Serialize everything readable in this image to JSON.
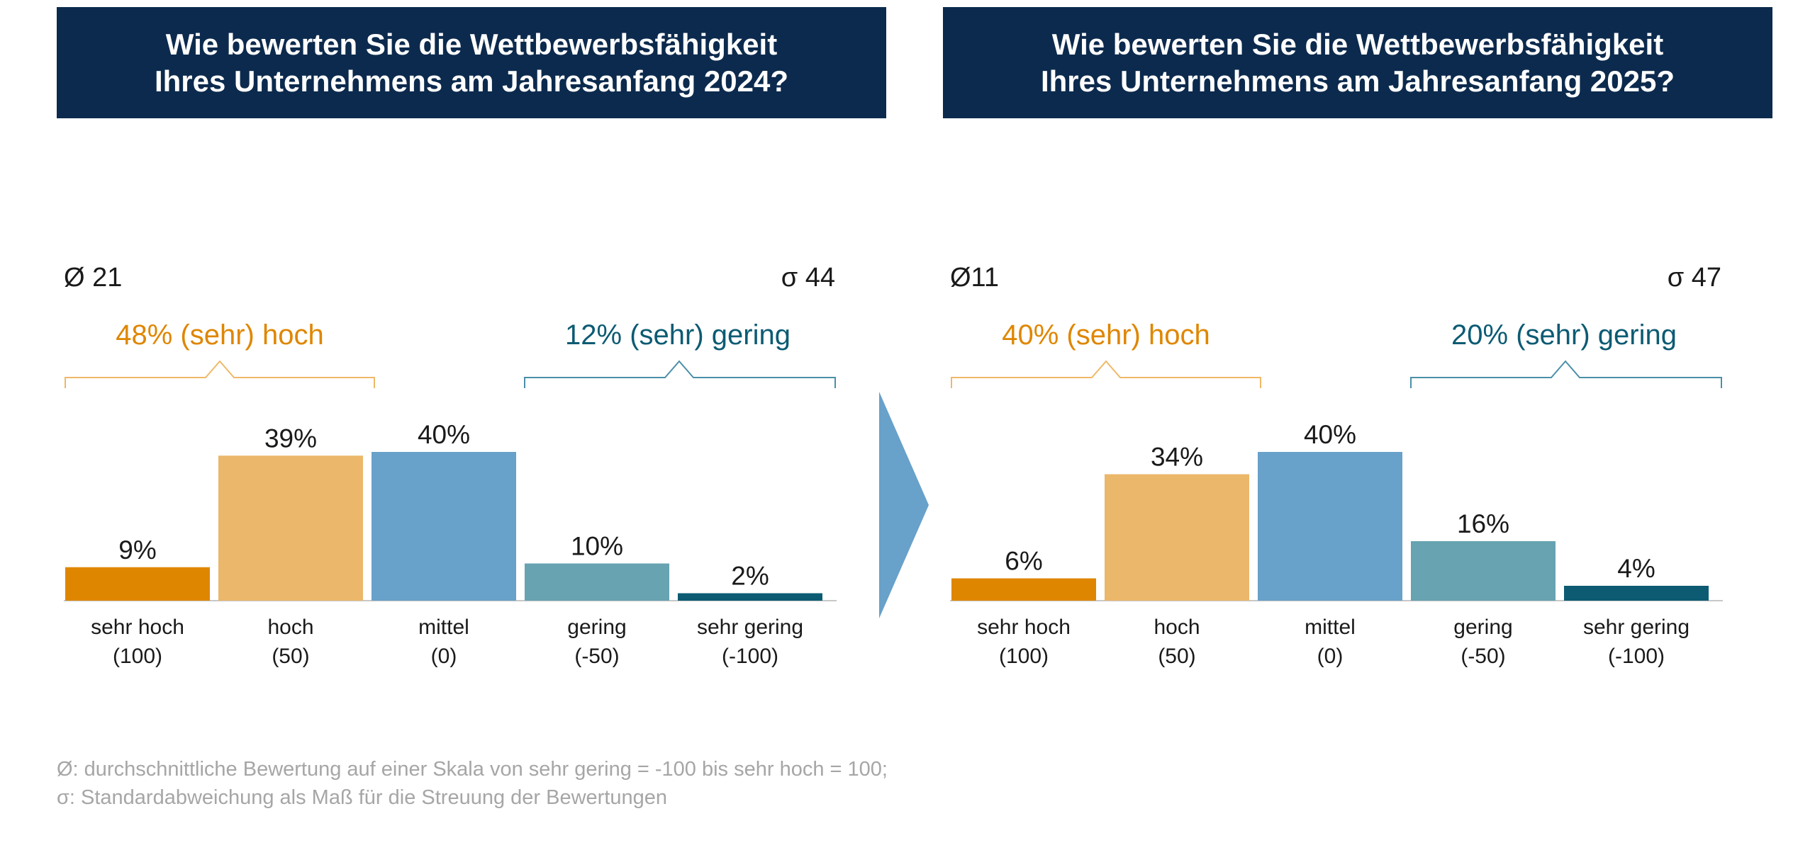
{
  "colors": {
    "header_bg": "#0c2a4d",
    "header_text": "#ffffff",
    "sehr_hoch": "#df8600",
    "hoch": "#ebb76a",
    "mittel": "#68a1c9",
    "gering": "#67a3b1",
    "sehr_gering": "#0c5b73",
    "bracket_hoch": "#f0b868",
    "bracket_gering": "#4b8fa8",
    "arrow": "#68a1c9",
    "footnote": "#a6a6a6"
  },
  "footnote": {
    "line1": "Ø: durchschnittliche Bewertung auf einer Skala von sehr gering = -100 bis sehr hoch = 100;",
    "line2": "σ: Standardabweichung als Maß für die Streuung der Bewertungen"
  },
  "chart_data": [
    {
      "type": "bar",
      "title": "Wie bewerten Sie die Wettbewerbsfähigkeit Ihres Unternehmens am Jahresanfang 2024?",
      "title_lines": [
        "Wie bewerten Sie die Wettbewerbsfähigkeit",
        "Ihres Unternehmens am Jahresanfang 2024?"
      ],
      "mean_label": "Ø 21",
      "sd_label": "σ 44",
      "group_high_label": "48% (sehr) hoch",
      "group_low_label": "12% (sehr) gering",
      "categories": [
        [
          "sehr hoch",
          "(100)"
        ],
        [
          "hoch",
          "(50)"
        ],
        [
          "mittel",
          "(0)"
        ],
        [
          "gering",
          "(-50)"
        ],
        [
          "sehr gering",
          "(-100)"
        ]
      ],
      "values": [
        9,
        39,
        40,
        10,
        2
      ],
      "value_labels": [
        "9%",
        "39%",
        "40%",
        "10%",
        "2%"
      ],
      "bar_colors": [
        "#df8600",
        "#ebb76a",
        "#68a1c9",
        "#67a3b1",
        "#0c5b73"
      ],
      "ylim": [
        0,
        40
      ]
    },
    {
      "type": "bar",
      "title": "Wie bewerten Sie die Wettbewerbsfähigkeit Ihres Unternehmens am Jahresanfang 2025?",
      "title_lines": [
        "Wie bewerten Sie die Wettbewerbsfähigkeit",
        "Ihres Unternehmens am Jahresanfang 2025?"
      ],
      "mean_label": "Ø11",
      "sd_label": "σ 47",
      "group_high_label": "40% (sehr) hoch",
      "group_low_label": "20% (sehr) gering",
      "categories": [
        [
          "sehr hoch",
          "(100)"
        ],
        [
          "hoch",
          "(50)"
        ],
        [
          "mittel",
          "(0)"
        ],
        [
          "gering",
          "(-50)"
        ],
        [
          "sehr gering",
          "(-100)"
        ]
      ],
      "values": [
        6,
        34,
        40,
        16,
        4
      ],
      "value_labels": [
        "6%",
        "34%",
        "40%",
        "16%",
        "4%"
      ],
      "bar_colors": [
        "#df8600",
        "#ebb76a",
        "#68a1c9",
        "#67a3b1",
        "#0c5b73"
      ],
      "ylim": [
        0,
        40
      ]
    }
  ]
}
